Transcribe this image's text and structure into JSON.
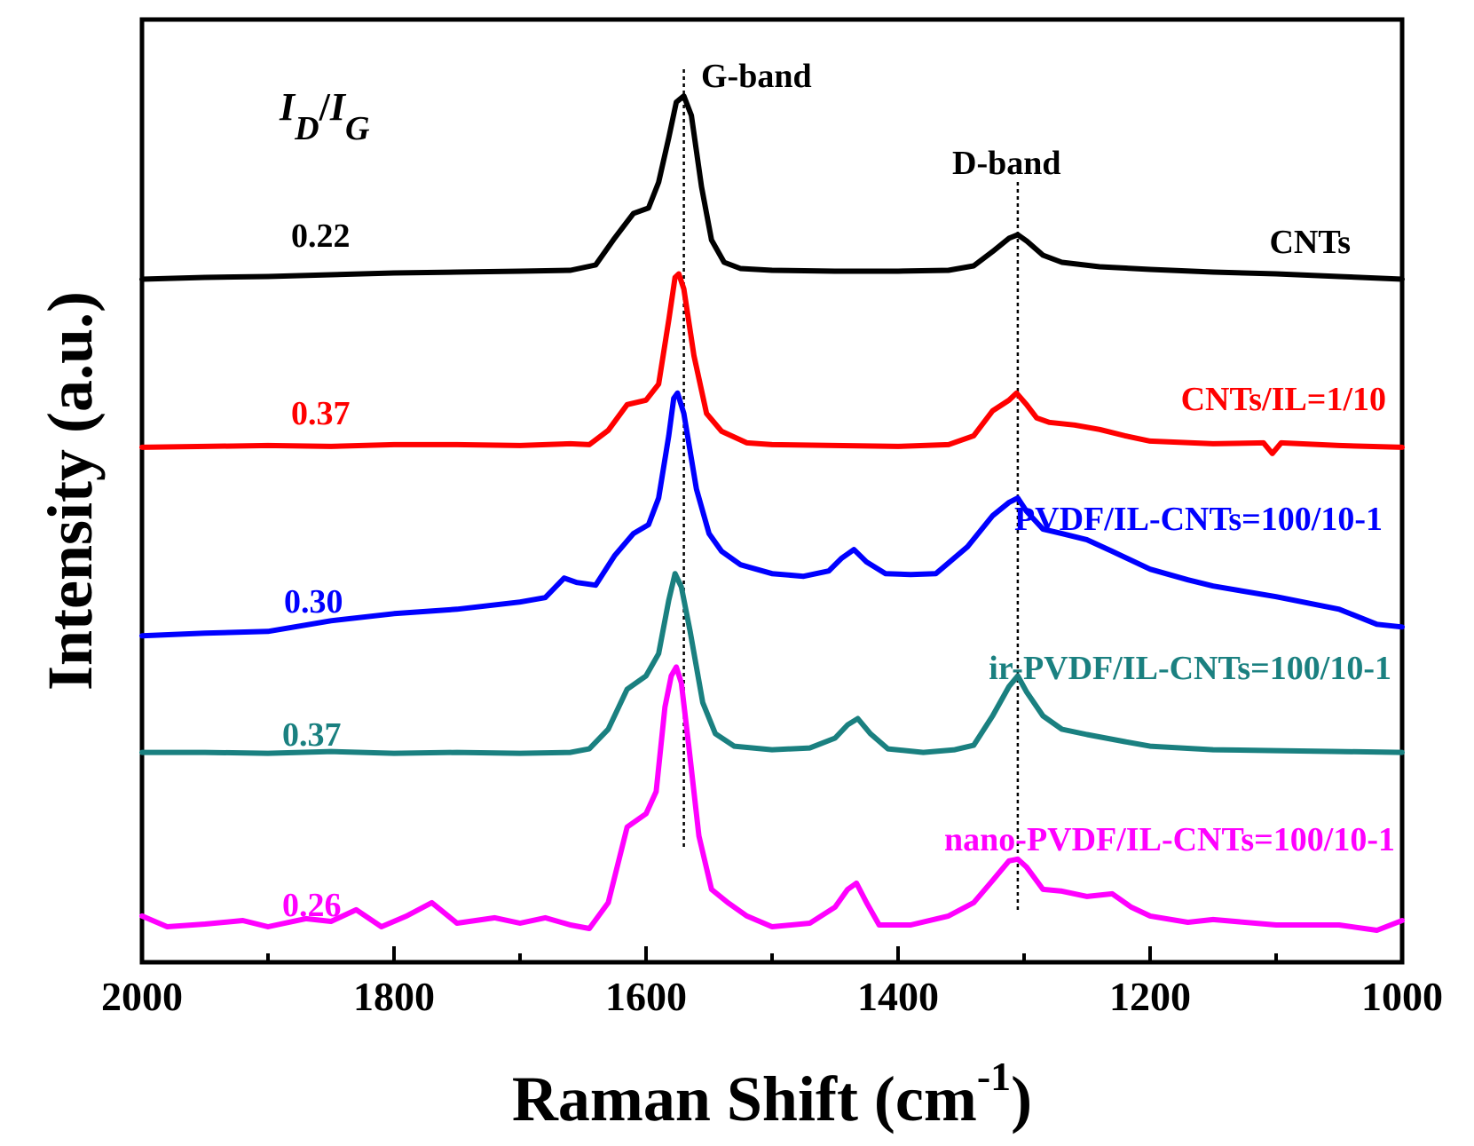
{
  "chart_data": {
    "type": "line",
    "title": "",
    "xlabel": "Raman Shift (cm",
    "xlabel_sup": "-1",
    "xlabel_close": ")",
    "ylabel": "Intensity (a.u.)",
    "xlim": [
      2000,
      1000
    ],
    "ylim": [
      0,
      1
    ],
    "x_ticks": [
      2000,
      1800,
      1600,
      1400,
      1200,
      1000
    ],
    "x_tick_labels": [
      "2000",
      "1800",
      "1600",
      "1400",
      "1200",
      "1000"
    ],
    "ratio_header": {
      "main1": "I",
      "sub1": "D",
      "slash": "/",
      "main2": "I",
      "sub2": "G"
    },
    "reference_lines": [
      {
        "name": "G-band",
        "x": 1570
      },
      {
        "name": "D-band",
        "x": 1305
      }
    ],
    "band_labels": [
      "G-band",
      "D-band"
    ],
    "series": [
      {
        "name": "CNTs",
        "color": "#000000",
        "ratio": "0.22",
        "points": [
          [
            2000,
            0.746
          ],
          [
            1950,
            0.748
          ],
          [
            1900,
            0.749
          ],
          [
            1850,
            0.751
          ],
          [
            1800,
            0.753
          ],
          [
            1750,
            0.754
          ],
          [
            1700,
            0.755
          ],
          [
            1660,
            0.756
          ],
          [
            1640,
            0.762
          ],
          [
            1625,
            0.792
          ],
          [
            1610,
            0.82
          ],
          [
            1598,
            0.826
          ],
          [
            1590,
            0.855
          ],
          [
            1582,
            0.905
          ],
          [
            1576,
            0.945
          ],
          [
            1570,
            0.952
          ],
          [
            1564,
            0.93
          ],
          [
            1556,
            0.85
          ],
          [
            1548,
            0.79
          ],
          [
            1538,
            0.765
          ],
          [
            1525,
            0.758
          ],
          [
            1500,
            0.756
          ],
          [
            1450,
            0.755
          ],
          [
            1400,
            0.755
          ],
          [
            1360,
            0.756
          ],
          [
            1340,
            0.761
          ],
          [
            1325,
            0.777
          ],
          [
            1312,
            0.792
          ],
          [
            1305,
            0.796
          ],
          [
            1298,
            0.789
          ],
          [
            1285,
            0.773
          ],
          [
            1270,
            0.765
          ],
          [
            1240,
            0.76
          ],
          [
            1200,
            0.757
          ],
          [
            1150,
            0.754
          ],
          [
            1100,
            0.752
          ],
          [
            1050,
            0.749
          ],
          [
            1000,
            0.746
          ]
        ]
      },
      {
        "name": "CNTs/IL=1/10",
        "color": "#ff0000",
        "ratio": "0.37",
        "points": [
          [
            2000,
            0.557
          ],
          [
            1950,
            0.558
          ],
          [
            1900,
            0.559
          ],
          [
            1850,
            0.558
          ],
          [
            1800,
            0.56
          ],
          [
            1750,
            0.56
          ],
          [
            1700,
            0.559
          ],
          [
            1660,
            0.561
          ],
          [
            1645,
            0.56
          ],
          [
            1630,
            0.576
          ],
          [
            1615,
            0.605
          ],
          [
            1600,
            0.61
          ],
          [
            1590,
            0.628
          ],
          [
            1582,
            0.7
          ],
          [
            1577,
            0.748
          ],
          [
            1574,
            0.752
          ],
          [
            1570,
            0.735
          ],
          [
            1562,
            0.66
          ],
          [
            1552,
            0.595
          ],
          [
            1540,
            0.575
          ],
          [
            1520,
            0.562
          ],
          [
            1500,
            0.56
          ],
          [
            1450,
            0.559
          ],
          [
            1400,
            0.558
          ],
          [
            1360,
            0.56
          ],
          [
            1340,
            0.57
          ],
          [
            1325,
            0.598
          ],
          [
            1312,
            0.61
          ],
          [
            1306,
            0.618
          ],
          [
            1298,
            0.605
          ],
          [
            1290,
            0.59
          ],
          [
            1280,
            0.585
          ],
          [
            1260,
            0.582
          ],
          [
            1240,
            0.577
          ],
          [
            1220,
            0.57
          ],
          [
            1200,
            0.564
          ],
          [
            1150,
            0.561
          ],
          [
            1110,
            0.562
          ],
          [
            1103,
            0.55
          ],
          [
            1096,
            0.562
          ],
          [
            1050,
            0.559
          ],
          [
            1000,
            0.557
          ]
        ]
      },
      {
        "name": "PVDF/IL-CNTs=100/10-1",
        "color": "#0000ff",
        "ratio": "0.30",
        "points": [
          [
            2000,
            0.345
          ],
          [
            1950,
            0.348
          ],
          [
            1900,
            0.35
          ],
          [
            1850,
            0.362
          ],
          [
            1800,
            0.37
          ],
          [
            1750,
            0.375
          ],
          [
            1700,
            0.383
          ],
          [
            1680,
            0.388
          ],
          [
            1665,
            0.41
          ],
          [
            1655,
            0.405
          ],
          [
            1640,
            0.402
          ],
          [
            1625,
            0.435
          ],
          [
            1610,
            0.46
          ],
          [
            1598,
            0.47
          ],
          [
            1590,
            0.5
          ],
          [
            1582,
            0.57
          ],
          [
            1578,
            0.612
          ],
          [
            1575,
            0.618
          ],
          [
            1570,
            0.595
          ],
          [
            1560,
            0.51
          ],
          [
            1550,
            0.46
          ],
          [
            1540,
            0.44
          ],
          [
            1525,
            0.425
          ],
          [
            1500,
            0.415
          ],
          [
            1475,
            0.412
          ],
          [
            1455,
            0.418
          ],
          [
            1445,
            0.432
          ],
          [
            1435,
            0.442
          ],
          [
            1425,
            0.428
          ],
          [
            1410,
            0.415
          ],
          [
            1390,
            0.414
          ],
          [
            1370,
            0.415
          ],
          [
            1345,
            0.445
          ],
          [
            1325,
            0.48
          ],
          [
            1312,
            0.495
          ],
          [
            1305,
            0.5
          ],
          [
            1298,
            0.485
          ],
          [
            1285,
            0.465
          ],
          [
            1270,
            0.46
          ],
          [
            1250,
            0.453
          ],
          [
            1230,
            0.44
          ],
          [
            1200,
            0.42
          ],
          [
            1170,
            0.408
          ],
          [
            1150,
            0.401
          ],
          [
            1100,
            0.389
          ],
          [
            1050,
            0.375
          ],
          [
            1020,
            0.358
          ],
          [
            1000,
            0.355
          ]
        ]
      },
      {
        "name": "ir-PVDF/IL-CNTs=100/10-1",
        "color": "#1a8080",
        "ratio": "0.37",
        "points": [
          [
            2000,
            0.214
          ],
          [
            1950,
            0.214
          ],
          [
            1900,
            0.213
          ],
          [
            1850,
            0.215
          ],
          [
            1800,
            0.213
          ],
          [
            1750,
            0.214
          ],
          [
            1700,
            0.213
          ],
          [
            1660,
            0.214
          ],
          [
            1645,
            0.218
          ],
          [
            1630,
            0.24
          ],
          [
            1615,
            0.285
          ],
          [
            1600,
            0.3
          ],
          [
            1590,
            0.325
          ],
          [
            1582,
            0.385
          ],
          [
            1577,
            0.415
          ],
          [
            1572,
            0.4
          ],
          [
            1565,
            0.35
          ],
          [
            1555,
            0.27
          ],
          [
            1545,
            0.235
          ],
          [
            1530,
            0.221
          ],
          [
            1500,
            0.217
          ],
          [
            1470,
            0.219
          ],
          [
            1450,
            0.23
          ],
          [
            1440,
            0.245
          ],
          [
            1432,
            0.252
          ],
          [
            1422,
            0.235
          ],
          [
            1408,
            0.218
          ],
          [
            1380,
            0.214
          ],
          [
            1355,
            0.217
          ],
          [
            1340,
            0.222
          ],
          [
            1325,
            0.255
          ],
          [
            1312,
            0.288
          ],
          [
            1305,
            0.3
          ],
          [
            1298,
            0.282
          ],
          [
            1285,
            0.255
          ],
          [
            1270,
            0.24
          ],
          [
            1250,
            0.234
          ],
          [
            1220,
            0.226
          ],
          [
            1200,
            0.221
          ],
          [
            1150,
            0.217
          ],
          [
            1100,
            0.216
          ],
          [
            1050,
            0.215
          ],
          [
            1000,
            0.214
          ]
        ]
      },
      {
        "name": "nano-PVDF/IL-CNTs=100/10-1",
        "color": "#ff00ff",
        "ratio": "0.26",
        "points": [
          [
            2000,
            0.03
          ],
          [
            1980,
            0.018
          ],
          [
            1950,
            0.021
          ],
          [
            1920,
            0.025
          ],
          [
            1900,
            0.018
          ],
          [
            1870,
            0.027
          ],
          [
            1850,
            0.024
          ],
          [
            1830,
            0.037
          ],
          [
            1810,
            0.018
          ],
          [
            1790,
            0.03
          ],
          [
            1770,
            0.045
          ],
          [
            1750,
            0.022
          ],
          [
            1720,
            0.028
          ],
          [
            1700,
            0.022
          ],
          [
            1680,
            0.028
          ],
          [
            1660,
            0.02
          ],
          [
            1645,
            0.016
          ],
          [
            1630,
            0.045
          ],
          [
            1615,
            0.13
          ],
          [
            1600,
            0.145
          ],
          [
            1592,
            0.17
          ],
          [
            1585,
            0.265
          ],
          [
            1580,
            0.3
          ],
          [
            1576,
            0.31
          ],
          [
            1572,
            0.292
          ],
          [
            1566,
            0.22
          ],
          [
            1558,
            0.12
          ],
          [
            1548,
            0.06
          ],
          [
            1535,
            0.045
          ],
          [
            1520,
            0.03
          ],
          [
            1500,
            0.018
          ],
          [
            1470,
            0.022
          ],
          [
            1450,
            0.04
          ],
          [
            1440,
            0.06
          ],
          [
            1433,
            0.067
          ],
          [
            1425,
            0.045
          ],
          [
            1415,
            0.02
          ],
          [
            1390,
            0.02
          ],
          [
            1360,
            0.03
          ],
          [
            1340,
            0.045
          ],
          [
            1325,
            0.07
          ],
          [
            1312,
            0.092
          ],
          [
            1305,
            0.094
          ],
          [
            1298,
            0.085
          ],
          [
            1285,
            0.06
          ],
          [
            1270,
            0.058
          ],
          [
            1250,
            0.052
          ],
          [
            1230,
            0.055
          ],
          [
            1215,
            0.04
          ],
          [
            1200,
            0.03
          ],
          [
            1170,
            0.023
          ],
          [
            1150,
            0.026
          ],
          [
            1100,
            0.02
          ],
          [
            1050,
            0.02
          ],
          [
            1020,
            0.014
          ],
          [
            1000,
            0.025
          ]
        ]
      }
    ]
  }
}
